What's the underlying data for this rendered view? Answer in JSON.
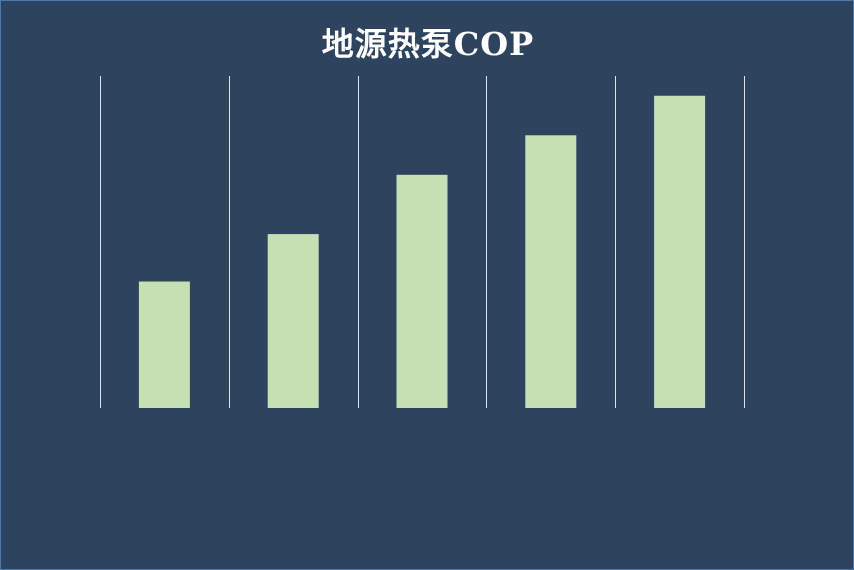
{
  "chart_data": {
    "type": "bar",
    "title": "地源热泵COP",
    "categories": [
      "",
      "",
      "",
      "",
      ""
    ],
    "values": [
      3.2,
      4.4,
      5.9,
      6.9,
      7.9
    ],
    "ylim": [
      0,
      8.4
    ],
    "grid": "vertical-separators",
    "colors": {
      "background": "#2e445e",
      "bar": "#c6e0b4",
      "gridline": "#ffffff",
      "title": "#ffffff"
    }
  }
}
